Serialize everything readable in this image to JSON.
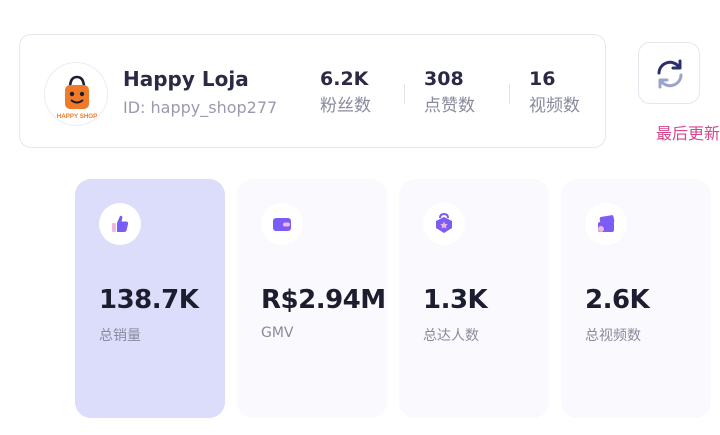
{
  "profile": {
    "name": "Happy Loja",
    "id_text": "ID: happy_shop277",
    "avatar_brand": "HAPPY SHOP",
    "stats": [
      {
        "value": "6.2K",
        "label": "粉丝数"
      },
      {
        "value": "308",
        "label": "点赞数"
      },
      {
        "value": "16",
        "label": "视频数"
      }
    ]
  },
  "refresh": {
    "icon": "refresh-icon",
    "last_updated_label": "最后更新"
  },
  "metrics": [
    {
      "value": "138.7K",
      "label": "总销量",
      "icon": "thumbs-up-icon",
      "active": true
    },
    {
      "value": "R$2.94M",
      "label": "GMV",
      "icon": "wallet-icon",
      "active": false
    },
    {
      "value": "1.3K",
      "label": "总达人数",
      "icon": "influencer-badge-icon",
      "active": false
    },
    {
      "value": "2.6K",
      "label": "总视频数",
      "icon": "video-stack-icon",
      "active": false
    }
  ],
  "colors": {
    "accent": "#7b5cf5",
    "active_card": "#dcdcfb",
    "link_pink": "#d6478f",
    "brand_orange": "#f07a2a"
  }
}
